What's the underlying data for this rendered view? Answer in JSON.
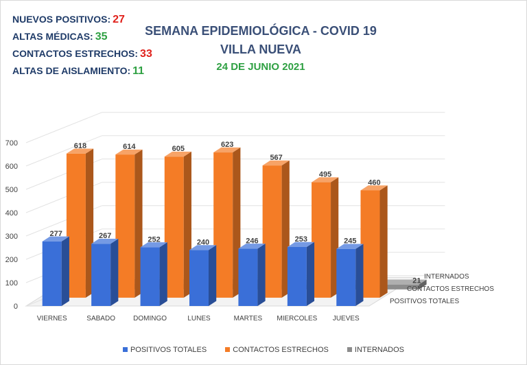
{
  "stats": [
    {
      "label": "NUEVOS POSITIVOS:",
      "value": "27",
      "color": "#e0211b"
    },
    {
      "label": "ALTAS MÉDICAS:",
      "value": "35",
      "color": "#2ea042"
    },
    {
      "label": "CONTACTOS ESTRECHOS:",
      "value": "33",
      "color": "#e0211b"
    },
    {
      "label": "ALTAS DE AISLAMIENTO:",
      "value": "11",
      "color": "#2ea042"
    }
  ],
  "title": {
    "line1": "SEMANA EPIDEMIOLÓGICA - COVID 19",
    "line2": "VILLA NUEVA",
    "date": "24 DE JUNIO 2021"
  },
  "chart_data": {
    "type": "bar",
    "style": "3d-depth",
    "categories": [
      "VIERNES",
      "SABADO",
      "DOMINGO",
      "LUNES",
      "MARTES",
      "MIERCOLES",
      "JUEVES"
    ],
    "series": [
      {
        "name": "POSITIVOS TOTALES",
        "values": [
          277,
          267,
          252,
          240,
          246,
          253,
          245
        ],
        "color": "#3a6fd8"
      },
      {
        "name": "CONTACTOS ESTRECHOS",
        "values": [
          618,
          614,
          605,
          623,
          567,
          495,
          460
        ],
        "color": "#f47c26"
      },
      {
        "name": "INTERNADOS",
        "values": [
          22,
          23,
          24,
          23,
          21,
          20,
          21
        ],
        "color": "#8c8c8c"
      }
    ],
    "y_ticks": [
      "0",
      "100",
      "200",
      "300",
      "400",
      "500",
      "600",
      "700"
    ],
    "ylim": [
      0,
      700
    ],
    "grid": true,
    "legend_position": "bottom"
  }
}
